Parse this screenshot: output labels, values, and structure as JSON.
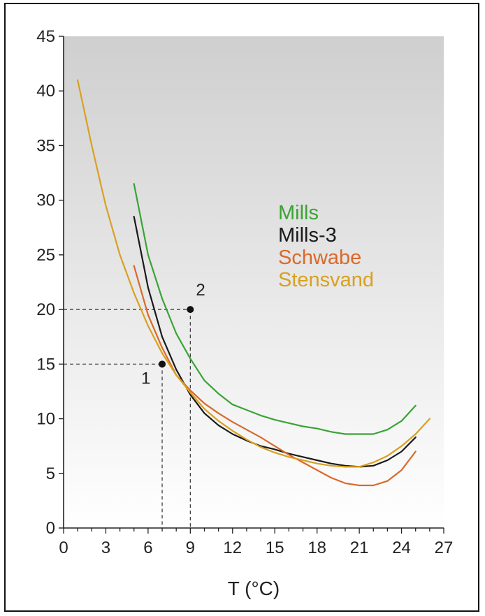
{
  "chart_data": {
    "type": "line",
    "title": "",
    "xlabel": "T (°C)",
    "ylabel": "",
    "xlim": [
      0,
      27
    ],
    "ylim": [
      0,
      45
    ],
    "x_ticks": [
      0,
      3,
      6,
      9,
      12,
      15,
      18,
      21,
      24,
      27
    ],
    "y_ticks": [
      0,
      5,
      10,
      15,
      20,
      25,
      30,
      35,
      40,
      45
    ],
    "x_minor_step": 1,
    "grid": false,
    "background": "gradient-gray-to-white",
    "legend": {
      "placement": "center-right",
      "entries": [
        {
          "name": "Mills",
          "color": "#3aa335"
        },
        {
          "name": "Mills-3",
          "color": "#1a1a1a"
        },
        {
          "name": "Schwabe",
          "color": "#d9692a"
        },
        {
          "name": "Stensvand",
          "color": "#d9a020"
        }
      ]
    },
    "series": [
      {
        "name": "Mills",
        "color": "#3aa335",
        "points": [
          [
            5,
            31.5
          ],
          [
            6,
            25
          ],
          [
            7,
            21
          ],
          [
            8,
            17.8
          ],
          [
            9,
            15.5
          ],
          [
            10,
            13.5
          ],
          [
            11,
            12.3
          ],
          [
            12,
            11.3
          ],
          [
            13,
            10.8
          ],
          [
            14,
            10.3
          ],
          [
            15,
            9.9
          ],
          [
            16,
            9.6
          ],
          [
            17,
            9.3
          ],
          [
            18,
            9.1
          ],
          [
            19,
            8.8
          ],
          [
            20,
            8.6
          ],
          [
            21,
            8.6
          ],
          [
            22,
            8.6
          ],
          [
            23,
            9.0
          ],
          [
            24,
            9.8
          ],
          [
            25,
            11.2
          ]
        ]
      },
      {
        "name": "Mills-3",
        "color": "#1a1a1a",
        "points": [
          [
            5,
            28.5
          ],
          [
            6,
            22
          ],
          [
            7,
            17.5
          ],
          [
            8,
            14.5
          ],
          [
            9,
            12.2
          ],
          [
            10,
            10.5
          ],
          [
            11,
            9.4
          ],
          [
            12,
            8.6
          ],
          [
            13,
            8.0
          ],
          [
            14,
            7.5
          ],
          [
            15,
            7.2
          ],
          [
            16,
            6.8
          ],
          [
            17,
            6.5
          ],
          [
            18,
            6.2
          ],
          [
            19,
            5.9
          ],
          [
            20,
            5.7
          ],
          [
            21,
            5.6
          ],
          [
            22,
            5.7
          ],
          [
            23,
            6.2
          ],
          [
            24,
            7.0
          ],
          [
            25,
            8.3
          ]
        ]
      },
      {
        "name": "Schwabe",
        "color": "#d9692a",
        "points": [
          [
            5,
            24
          ],
          [
            6,
            19.5
          ],
          [
            7,
            16.5
          ],
          [
            8,
            14
          ],
          [
            9,
            12.6
          ],
          [
            10,
            11.4
          ],
          [
            11,
            10.5
          ],
          [
            12,
            9.7
          ],
          [
            13,
            9.0
          ],
          [
            14,
            8.3
          ],
          [
            15,
            7.5
          ],
          [
            16,
            6.7
          ],
          [
            17,
            6.0
          ],
          [
            18,
            5.3
          ],
          [
            19,
            4.6
          ],
          [
            20,
            4.1
          ],
          [
            21,
            3.9
          ],
          [
            22,
            3.9
          ],
          [
            23,
            4.3
          ],
          [
            24,
            5.3
          ],
          [
            25,
            7.0
          ]
        ]
      },
      {
        "name": "Stensvand",
        "color": "#d9a020",
        "points": [
          [
            1,
            41
          ],
          [
            2,
            35
          ],
          [
            3,
            29.5
          ],
          [
            4,
            25
          ],
          [
            5,
            21.5
          ],
          [
            6,
            18.5
          ],
          [
            7,
            16
          ],
          [
            8,
            14
          ],
          [
            9,
            12.4
          ],
          [
            10,
            10.9
          ],
          [
            11,
            9.8
          ],
          [
            12,
            8.9
          ],
          [
            13,
            8.1
          ],
          [
            14,
            7.4
          ],
          [
            15,
            6.9
          ],
          [
            16,
            6.5
          ],
          [
            17,
            6.2
          ],
          [
            18,
            5.9
          ],
          [
            19,
            5.7
          ],
          [
            20,
            5.6
          ],
          [
            21,
            5.6
          ],
          [
            22,
            6.0
          ],
          [
            23,
            6.6
          ],
          [
            24,
            7.5
          ],
          [
            25,
            8.6
          ],
          [
            26,
            10.0
          ]
        ]
      }
    ],
    "annotations": [
      {
        "label": "1",
        "x": 7,
        "y": 15
      },
      {
        "label": "2",
        "x": 9,
        "y": 20
      }
    ]
  }
}
